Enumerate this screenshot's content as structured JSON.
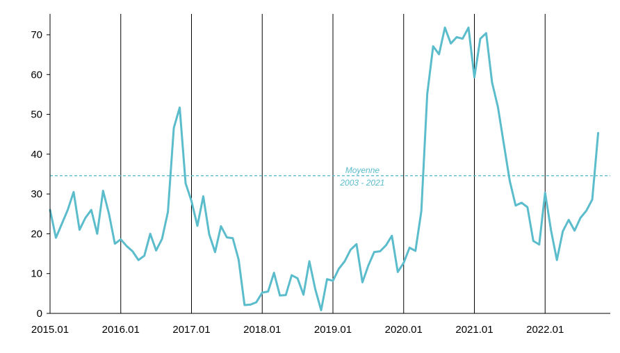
{
  "chart_data": {
    "type": "line",
    "title": "",
    "xlabel": "",
    "ylabel": "",
    "ylim": [
      0,
      75
    ],
    "y_ticks": [
      0,
      10,
      20,
      30,
      40,
      50,
      60,
      70
    ],
    "x_ticks": [
      "2015.01",
      "2016.01",
      "2017.01",
      "2018.01",
      "2019.01",
      "2020.01",
      "2021.01",
      "2022.01"
    ],
    "grid": "vertical lines at January of each year",
    "series": [
      {
        "color": "#5bbccc",
        "x": [
          "2015.01",
          "2015.02",
          "2015.03",
          "2015.04",
          "2015.05",
          "2015.06",
          "2015.07",
          "2015.08",
          "2015.09",
          "2015.10",
          "2015.11",
          "2015.12",
          "2016.01",
          "2016.02",
          "2016.03",
          "2016.04",
          "2016.05",
          "2016.06",
          "2016.07",
          "2016.08",
          "2016.09",
          "2016.10",
          "2016.11",
          "2016.12",
          "2017.01",
          "2017.02",
          "2017.03",
          "2017.04",
          "2017.05",
          "2017.06",
          "2017.07",
          "2017.08",
          "2017.09",
          "2017.10",
          "2017.11",
          "2017.12",
          "2018.01",
          "2018.02",
          "2018.03",
          "2018.04",
          "2018.05",
          "2018.06",
          "2018.07",
          "2018.08",
          "2018.09",
          "2018.10",
          "2018.11",
          "2018.12",
          "2019.01",
          "2019.02",
          "2019.03",
          "2019.04",
          "2019.05",
          "2019.06",
          "2019.07",
          "2019.08",
          "2019.09",
          "2019.10",
          "2019.11",
          "2019.12",
          "2020.01",
          "2020.02",
          "2020.03",
          "2020.04",
          "2020.05",
          "2020.06",
          "2020.07",
          "2020.08",
          "2020.09",
          "2020.10",
          "2020.11",
          "2020.12",
          "2021.01",
          "2021.02",
          "2021.03",
          "2021.04",
          "2021.05",
          "2021.06",
          "2021.07",
          "2021.08",
          "2021.09",
          "2021.10",
          "2021.11",
          "2021.12",
          "2022.01",
          "2022.02",
          "2022.03",
          "2022.04",
          "2022.05",
          "2022.06",
          "2022.07",
          "2022.08",
          "2022.09",
          "2022.10"
        ],
        "values": [
          26,
          19,
          22.5,
          26,
          30.5,
          21,
          24,
          26,
          20,
          30.8,
          25,
          17.5,
          18.6,
          16.9,
          15.6,
          13.4,
          14.5,
          20,
          15.8,
          18.7,
          25.5,
          46.6,
          51.7,
          32.7,
          28.2,
          22,
          29.4,
          19.9,
          15.4,
          21.9,
          19.1,
          18.9,
          13.5,
          2.1,
          2.2,
          2.8,
          5.2,
          5.5,
          10.2,
          4.5,
          4.6,
          9.6,
          8.8,
          4.7,
          13.1,
          6.1,
          0.8,
          8.6,
          8.2,
          11.2,
          13.1,
          16,
          17.4,
          7.8,
          12,
          15.4,
          15.6,
          17.1,
          19.5,
          10.4,
          12.7,
          16.5,
          15.7,
          25.7,
          55.1,
          67.1,
          65.1,
          71.8,
          67.8,
          69.4,
          69,
          71.8,
          59.3,
          69,
          70.4,
          58,
          51.8,
          42.5,
          33.3,
          27.1,
          27.8,
          26.7,
          18.2,
          17.3,
          30.3,
          20.9,
          13.4,
          20.6,
          23.5,
          20.8,
          24,
          25.8,
          28.6,
          45.3
        ]
      }
    ],
    "reference_line": {
      "value": 34.6,
      "label_line1": "Moyenne",
      "label_line2": "2003 - 2021",
      "style": "dashed"
    }
  }
}
